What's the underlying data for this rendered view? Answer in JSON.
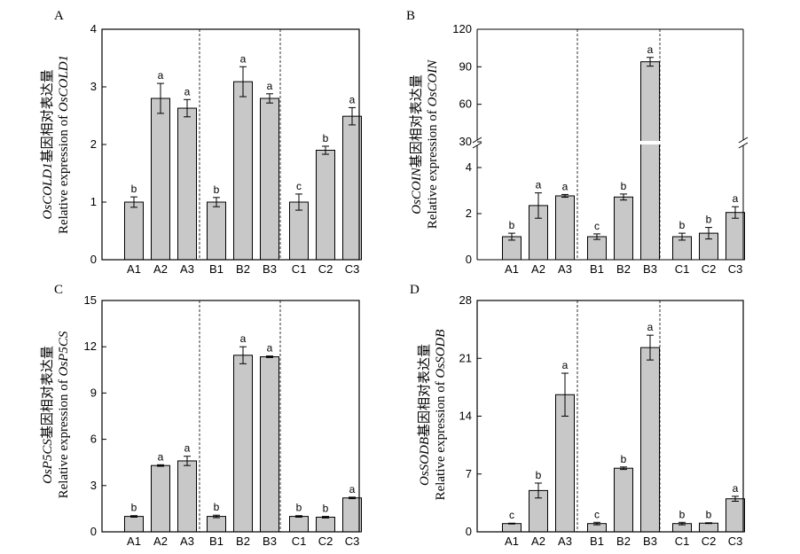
{
  "chart_data": [
    {
      "panel": "A",
      "type": "bar",
      "ylabel_line1_gene": "OsCOLD1",
      "ylabel_line1_suffix": "基因相对表达量",
      "ylabel_line2_prefix": "Relative expression of ",
      "ylabel_line2_gene": "OsCOLD1",
      "ylim": [
        0,
        4
      ],
      "yticks": [
        "0",
        "1",
        "2",
        "3",
        "4"
      ],
      "categories": [
        "A1",
        "A2",
        "A3",
        "B1",
        "B2",
        "B3",
        "C1",
        "C2",
        "C3"
      ],
      "values": [
        1.0,
        2.8,
        2.63,
        1.0,
        3.09,
        2.8,
        1.0,
        1.9,
        2.49
      ],
      "errors": [
        0.09,
        0.26,
        0.15,
        0.08,
        0.26,
        0.08,
        0.14,
        0.07,
        0.15
      ],
      "significance": [
        "b",
        "a",
        "a",
        "b",
        "a",
        "a",
        "c",
        "b",
        "a"
      ]
    },
    {
      "panel": "B",
      "type": "bar",
      "broken_axis": true,
      "ylabel_line1_gene": "OsCOIN",
      "ylabel_line1_suffix": "基因相对表达量",
      "ylabel_line2_prefix": "Relative expression of ",
      "ylabel_line2_gene": "OsCOIN",
      "ylim_lower": [
        0,
        5
      ],
      "ylim_upper": [
        30,
        120
      ],
      "yticks_lower": [
        "0",
        "2",
        "4"
      ],
      "yticks_upper": [
        "30",
        "60",
        "90",
        "120"
      ],
      "categories": [
        "A1",
        "A2",
        "A3",
        "B1",
        "B2",
        "B3",
        "C1",
        "C2",
        "C3"
      ],
      "values": [
        1.0,
        2.35,
        2.77,
        1.0,
        2.72,
        94.0,
        1.0,
        1.15,
        2.05
      ],
      "errors": [
        0.15,
        0.55,
        0.06,
        0.12,
        0.13,
        3.5,
        0.15,
        0.25,
        0.25
      ],
      "significance": [
        "b",
        "a",
        "a",
        "c",
        "b",
        "a",
        "b",
        "b",
        "a"
      ]
    },
    {
      "panel": "C",
      "type": "bar",
      "ylabel_line1_gene": "OsP5CS",
      "ylabel_line1_suffix": "基因相对表达量",
      "ylabel_line2_prefix": "Relative expression of ",
      "ylabel_line2_gene": "OsP5CS",
      "ylim": [
        0,
        15
      ],
      "yticks": [
        "0",
        "3",
        "6",
        "9",
        "12",
        "15"
      ],
      "categories": [
        "A1",
        "A2",
        "A3",
        "B1",
        "B2",
        "B3",
        "C1",
        "C2",
        "C3"
      ],
      "values": [
        1.0,
        4.3,
        4.6,
        1.0,
        11.45,
        11.35,
        1.0,
        0.95,
        2.2
      ],
      "errors": [
        0.05,
        0.05,
        0.3,
        0.08,
        0.55,
        0.05,
        0.05,
        0.05,
        0.05
      ],
      "significance": [
        "b",
        "a",
        "a",
        "b",
        "a",
        "a",
        "b",
        "b",
        "a"
      ]
    },
    {
      "panel": "D",
      "type": "bar",
      "ylabel_line1_gene": "OsSODB",
      "ylabel_line1_suffix": "基因相对表达量",
      "ylabel_line2_prefix": "Relative expression of ",
      "ylabel_line2_gene": "OsSODB",
      "ylim": [
        0,
        28
      ],
      "yticks": [
        "0",
        "7",
        "14",
        "21",
        "28"
      ],
      "categories": [
        "A1",
        "A2",
        "A3",
        "B1",
        "B2",
        "B3",
        "C1",
        "C2",
        "C3"
      ],
      "values": [
        1.0,
        5.0,
        16.6,
        1.0,
        7.7,
        22.3,
        1.0,
        1.05,
        4.0
      ],
      "errors": [
        0.05,
        0.9,
        2.6,
        0.15,
        0.15,
        1.5,
        0.15,
        0.05,
        0.3
      ],
      "significance": [
        "c",
        "b",
        "a",
        "c",
        "b",
        "a",
        "b",
        "b",
        "a"
      ]
    }
  ]
}
